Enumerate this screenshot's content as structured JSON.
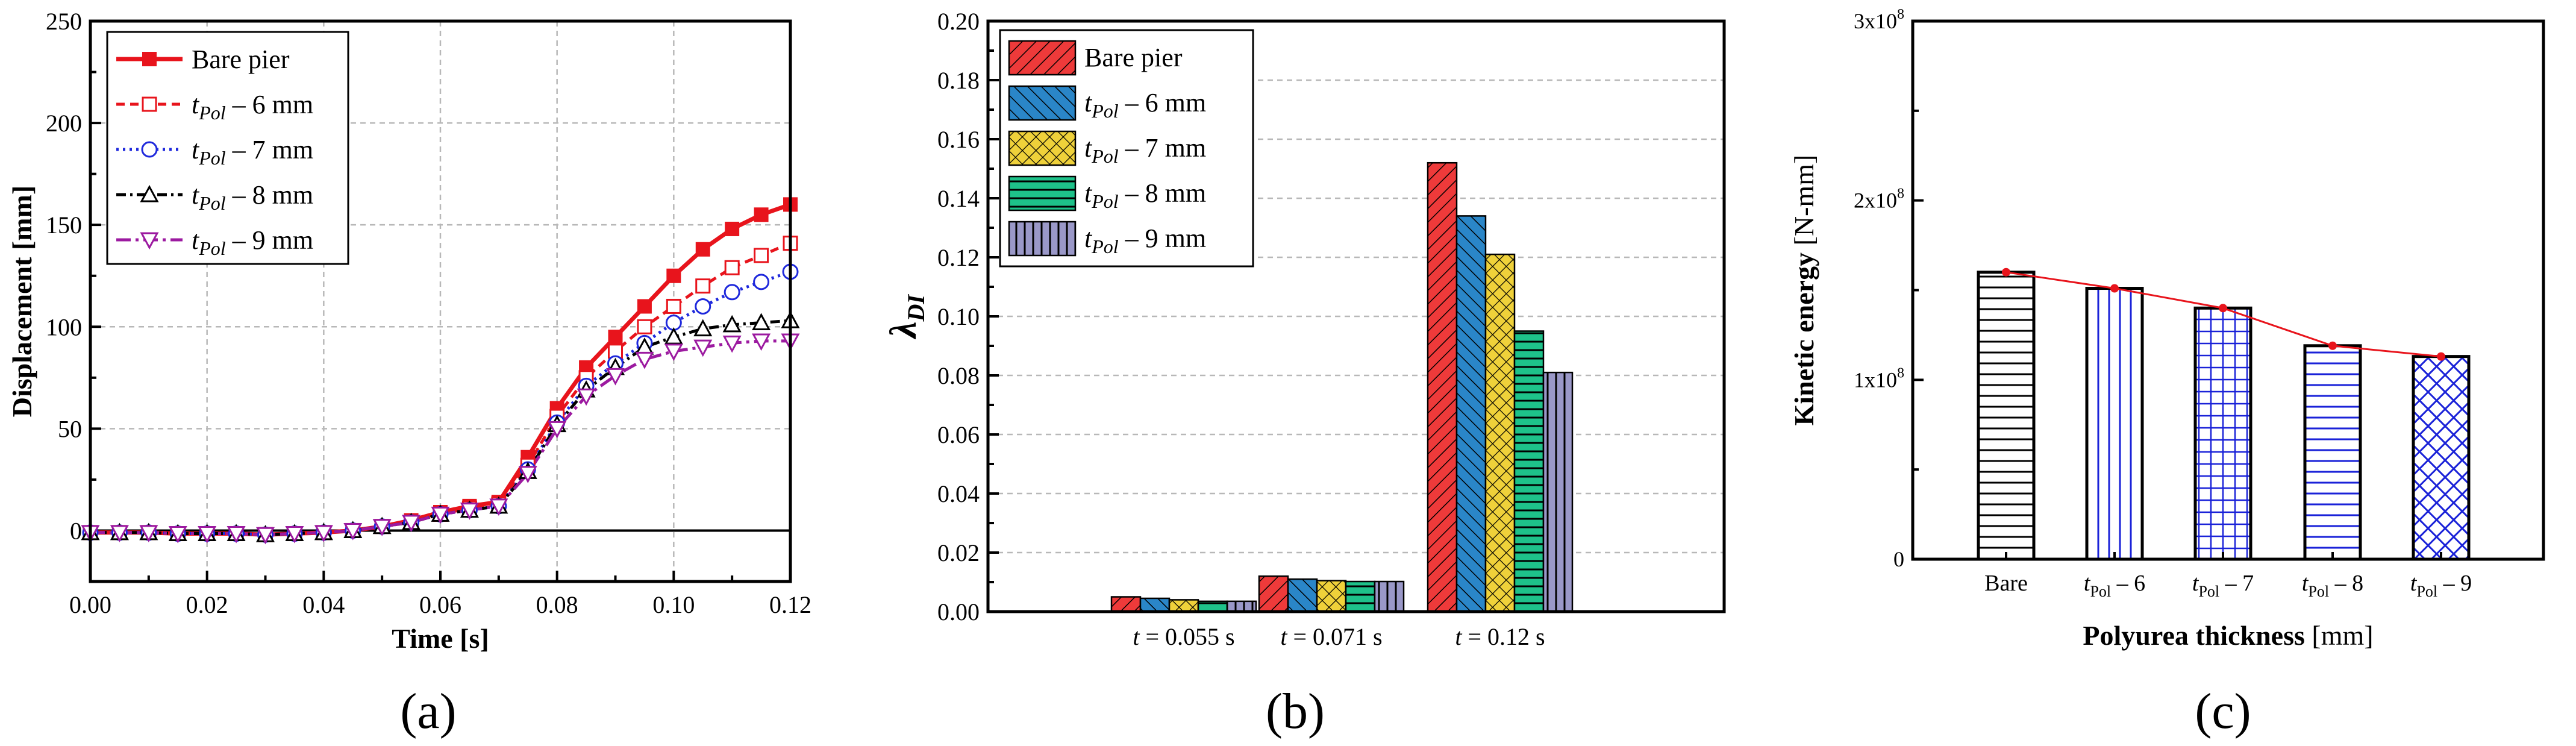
{
  "chart_data": [
    {
      "id": "a",
      "type": "line",
      "panel_label": "(a)",
      "xlabel": "Time [s]",
      "ylabel": "Displacement [mm]",
      "xlim": [
        0,
        0.12
      ],
      "ylim": [
        -25,
        250
      ],
      "xticks": [
        "0.00",
        "0.02",
        "0.04",
        "0.06",
        "0.08",
        "0.10",
        "0.12"
      ],
      "yticks": [
        "0",
        "50",
        "100",
        "150",
        "200",
        "250"
      ],
      "grid": true,
      "legend_position": "top-left",
      "x": [
        0,
        0.005,
        0.01,
        0.015,
        0.02,
        0.025,
        0.03,
        0.035,
        0.04,
        0.045,
        0.05,
        0.055,
        0.06,
        0.065,
        0.07,
        0.075,
        0.08,
        0.085,
        0.09,
        0.095,
        0.1,
        0.105,
        0.11,
        0.115,
        0.12
      ],
      "series": [
        {
          "name": "Bare pier",
          "prefix": "",
          "suffix": "",
          "color": "#e8141c",
          "dash": "",
          "marker": "square-filled",
          "values": [
            -1,
            -1,
            -1,
            -1.5,
            -1.5,
            -1.5,
            -2,
            -1.5,
            -1,
            0,
            2,
            5,
            9,
            12,
            14,
            36,
            60,
            80,
            95,
            110,
            125,
            138,
            148,
            155,
            160
          ]
        },
        {
          "name": "",
          "prefix": "t",
          "subscript": "Pol",
          "suffix": " – 6 mm",
          "color": "#e8141c",
          "dash": "14 9",
          "marker": "square-open",
          "values": [
            -1,
            -1,
            -1,
            -1.5,
            -1.5,
            -1.5,
            -2,
            -1.5,
            -1,
            0,
            2,
            4,
            8,
            11,
            13,
            32,
            56,
            75,
            88,
            100,
            110,
            120,
            129,
            135,
            141
          ]
        },
        {
          "name": "",
          "prefix": "t",
          "subscript": "Pol",
          "suffix": " – 7 mm",
          "color": "#1e28dc",
          "dash": "4 7",
          "marker": "circle-open",
          "values": [
            -1,
            -1,
            -1,
            -1.5,
            -1.5,
            -1.5,
            -2,
            -1.5,
            -1,
            0,
            2,
            4,
            8,
            10,
            12,
            30,
            53,
            71,
            82,
            92,
            102,
            110,
            117,
            122,
            127
          ]
        },
        {
          "name": "",
          "prefix": "t",
          "subscript": "Pol",
          "suffix": " – 8 mm",
          "color": "#000000",
          "dash": "16 7 4 7",
          "marker": "triangle-up-open",
          "values": [
            -1,
            -1,
            -1,
            -1.5,
            -1.5,
            -1.5,
            -2,
            -1.5,
            -1,
            0,
            2,
            4,
            8,
            10,
            12,
            29,
            52,
            69,
            80,
            90,
            95,
            99,
            101,
            102,
            103
          ]
        },
        {
          "name": "",
          "prefix": "t",
          "subscript": "Pol",
          "suffix": " – 9 mm",
          "color": "#9c1aa0",
          "dash": "24 8 5 8",
          "marker": "triangle-down-open",
          "values": [
            -1,
            -1,
            -1,
            -1.5,
            -1.5,
            -1.5,
            -2,
            -1.5,
            -1,
            0,
            2,
            4,
            8,
            10,
            12,
            28,
            50,
            66,
            76,
            84,
            88,
            90,
            92,
            93,
            93
          ]
        }
      ]
    },
    {
      "id": "b",
      "type": "bar",
      "panel_label": "(b)",
      "ylabel": "λ",
      "ylabel_sub": "DI",
      "ylim": [
        0,
        0.2
      ],
      "yticks": [
        "0.00",
        "0.02",
        "0.04",
        "0.06",
        "0.08",
        "0.10",
        "0.12",
        "0.14",
        "0.16",
        "0.18",
        "0.20"
      ],
      "categories": [
        " = 0.055 s",
        " = 0.071 s",
        " = 0.12 s"
      ],
      "category_prefix": "t",
      "grid": true,
      "legend_position": "top-left",
      "series": [
        {
          "name": "Bare pier",
          "prefix": "",
          "suffix": "",
          "color": "#ee3a3a",
          "pattern": "hatch-right",
          "values": [
            0.005,
            0.012,
            0.152
          ]
        },
        {
          "name": "",
          "prefix": "t",
          "subscript": "Pol",
          "suffix": " – 6 mm",
          "color": "#2a86c8",
          "pattern": "hatch-left",
          "values": [
            0.0045,
            0.011,
            0.134
          ]
        },
        {
          "name": "",
          "prefix": "t",
          "subscript": "Pol",
          "suffix": " – 7 mm",
          "color": "#efd13a",
          "pattern": "crosshatch",
          "values": [
            0.004,
            0.0105,
            0.121
          ]
        },
        {
          "name": "",
          "prefix": "t",
          "subscript": "Pol",
          "suffix": " – 8 mm",
          "color": "#1ec28a",
          "pattern": "horizontal",
          "values": [
            0.0035,
            0.0102,
            0.095
          ]
        },
        {
          "name": "",
          "prefix": "t",
          "subscript": "Pol",
          "suffix": " – 9 mm",
          "color": "#9a98c8",
          "pattern": "vertical",
          "values": [
            0.0035,
            0.0102,
            0.081
          ]
        }
      ]
    },
    {
      "id": "c",
      "type": "bar",
      "panel_label": "(c)",
      "xlabel_bold": "Polyurea thickness",
      "xlabel_rest": " [mm]",
      "ylabel_bold": "Kinetic energy",
      "ylabel_rest": " [N-mm]",
      "ylim": [
        0,
        300000000
      ],
      "yticks": [
        {
          "base": "0",
          "exp": ""
        },
        {
          "base": "1x10",
          "exp": "8"
        },
        {
          "base": "2x10",
          "exp": "8"
        },
        {
          "base": "3x10",
          "exp": "8"
        }
      ],
      "categories": [
        {
          "main": "Bare",
          "sub": "",
          "rest": ""
        },
        {
          "main": "t",
          "sub": "Pol",
          "rest": " – 6"
        },
        {
          "main": "t",
          "sub": "Pol",
          "rest": " – 7"
        },
        {
          "main": "t",
          "sub": "Pol",
          "rest": " – 8"
        },
        {
          "main": "t",
          "sub": "Pol",
          "rest": " – 9"
        }
      ],
      "values": [
        160000000,
        151000000,
        140000000,
        119000000,
        113000000
      ],
      "patterns": [
        "horizontal",
        "vertical",
        "grid",
        "horizontal",
        "crosshatch"
      ],
      "bar_colors": [
        "#000000",
        "#1a22d8",
        "#1a22d8",
        "#1a22d8",
        "#1a22d8"
      ],
      "trend_color": "#e8141c",
      "grid": false
    }
  ]
}
